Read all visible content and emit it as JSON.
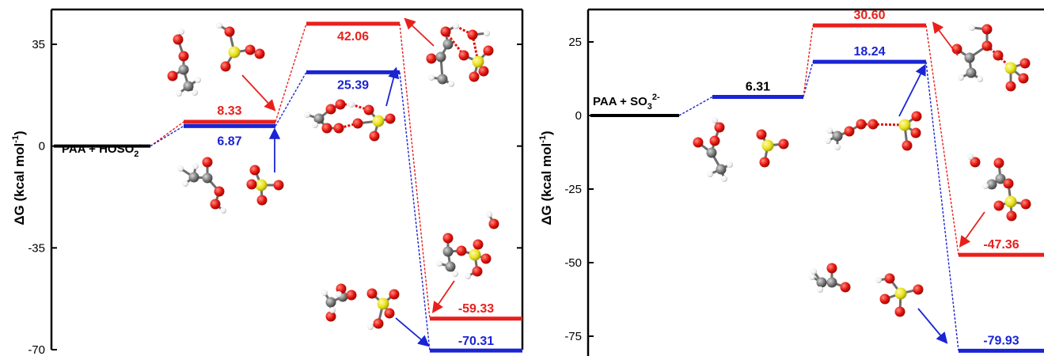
{
  "chart_data": [
    {
      "type": "energy-profile",
      "ylabel_main": "ΔG",
      "ylabel_unit": " (kcal mol",
      "ylabel_exp": "-1",
      "ylabel_close": ")",
      "ylim": [
        -70,
        44
      ],
      "yticks": [
        {
          "value": 35,
          "label": "35"
        },
        {
          "value": 0,
          "label": "0"
        },
        {
          "value": -35,
          "label": "-35"
        },
        {
          "value": -70,
          "label": "-70"
        }
      ],
      "reactant": {
        "value": 0,
        "label_base": "PAA + HOSO",
        "label_sub": "2",
        "label_sup": "-"
      },
      "series": [
        {
          "color": "#e8201c",
          "stages": [
            0,
            1,
            2,
            3
          ],
          "values": [
            0,
            8.33,
            42.06,
            -59.33
          ],
          "labels": [
            "",
            "8.33",
            "42.06",
            "-59.33"
          ]
        },
        {
          "color": "#1a24d4",
          "stages": [
            0,
            1,
            2,
            3
          ],
          "values": [
            0,
            6.87,
            25.39,
            -70.31
          ],
          "labels": [
            "",
            "6.87",
            "25.39",
            "-70.31"
          ]
        }
      ]
    },
    {
      "type": "energy-profile",
      "ylabel_main": "ΔG",
      "ylabel_unit": " (kcal mol",
      "ylabel_exp": "-1",
      "ylabel_close": ")",
      "ylim": [
        -82,
        35
      ],
      "yticks": [
        {
          "value": 25,
          "label": "25"
        },
        {
          "value": 0,
          "label": "0"
        },
        {
          "value": -25,
          "label": "-25"
        },
        {
          "value": -50,
          "label": "-50"
        },
        {
          "value": -75,
          "label": "-75"
        }
      ],
      "reactant": {
        "value": 0,
        "label_base": "PAA + SO",
        "label_sub": "3",
        "label_sup": "2-"
      },
      "series": [
        {
          "color": "#1a24d4",
          "stages": [
            0,
            1,
            2,
            3
          ],
          "values": [
            0,
            6.31,
            18.24,
            -79.93
          ],
          "labels": [
            "",
            "6.31",
            "18.24",
            "-79.93"
          ]
        },
        {
          "color": "#e8201c",
          "stages": [
            2,
            3
          ],
          "values": [
            30.6,
            -47.36
          ],
          "labels": [
            "30.60",
            "-47.36"
          ]
        }
      ],
      "label_colors": {
        "6.31": "#000000"
      }
    }
  ],
  "colors": {
    "red": "#e8201c",
    "blue": "#1a24d4",
    "oxygen": "#e3120b",
    "sulfur": "#e8e21a",
    "carbon": "#777777",
    "hydrogen": "#ffffff"
  }
}
